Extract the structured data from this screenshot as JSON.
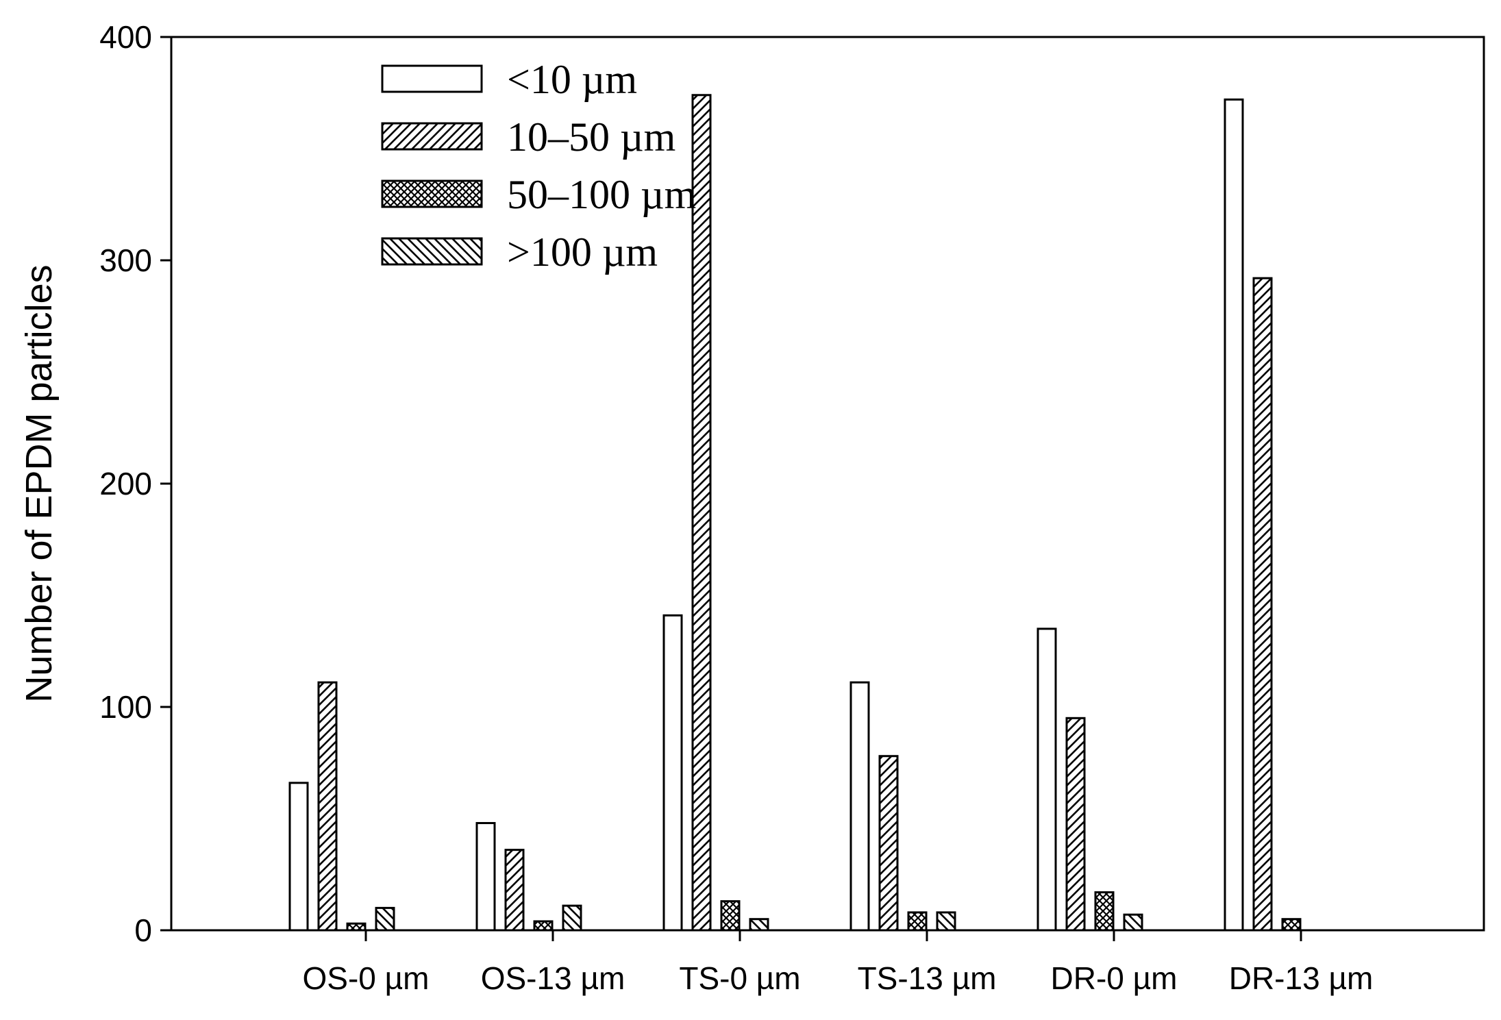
{
  "chart_data": {
    "type": "bar",
    "title": "",
    "xlabel": "",
    "ylabel": "Number of EPDM particles",
    "ylim": [
      0,
      400
    ],
    "yticks": [
      0,
      100,
      200,
      300,
      400
    ],
    "categories": [
      "OS-0 µm",
      "OS-13 µm",
      "TS-0 µm",
      "TS-13 µm",
      "DR-0 µm",
      "DR-13 µm"
    ],
    "series": [
      {
        "name": "<10 µm",
        "pattern": "none",
        "values": [
          66,
          48,
          141,
          111,
          135,
          372
        ]
      },
      {
        "name": "10–50 µm",
        "pattern": "diagonal-up",
        "values": [
          111,
          36,
          374,
          78,
          95,
          292
        ]
      },
      {
        "name": "50–100 µm",
        "pattern": "crosshatch",
        "values": [
          3,
          4,
          13,
          8,
          17,
          5
        ]
      },
      {
        "name": ">100 µm",
        "pattern": "diagonal-down",
        "values": [
          10,
          11,
          5,
          8,
          7,
          0
        ]
      }
    ],
    "legend": "top-left",
    "grid": false,
    "colors": {
      "stroke": "#000000",
      "fill": "#ffffff"
    }
  }
}
